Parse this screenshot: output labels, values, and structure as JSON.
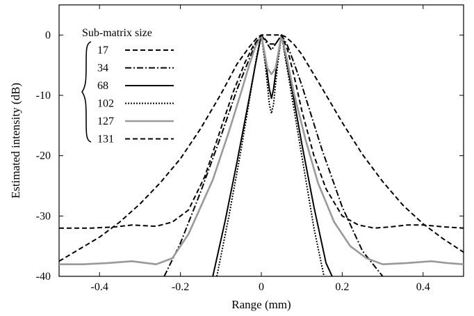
{
  "chart_data": {
    "type": "line",
    "title": "",
    "xlabel": "Range (mm)",
    "ylabel": "Estimated intensity  (dB)",
    "xlim": [
      -0.5,
      0.5
    ],
    "ylim": [
      -40,
      5
    ],
    "xticks": [
      -0.4,
      -0.2,
      0,
      0.2,
      0.4
    ],
    "xtick_labels": [
      "-0.4",
      "-0.2",
      "0",
      "0.2",
      "0.4"
    ],
    "yticks": [
      0,
      -10,
      -20,
      -30,
      -40
    ],
    "ytick_labels": [
      "0",
      "-10",
      "-20",
      "-30",
      "-40"
    ],
    "grid": false,
    "legend": {
      "title": "Sub-matrix size",
      "placement": "top-left"
    },
    "series": [
      {
        "name": "17",
        "color": "#000000",
        "dash": "dashed",
        "x": [
          -0.5,
          -0.45,
          -0.4,
          -0.35,
          -0.3,
          -0.25,
          -0.2,
          -0.15,
          -0.1,
          -0.06,
          -0.03,
          -0.01,
          0.0,
          0.025,
          0.05,
          0.06,
          0.08,
          0.1,
          0.15,
          0.2,
          0.25,
          0.3,
          0.35,
          0.4,
          0.45,
          0.5
        ],
        "y": [
          -37.5,
          -35.5,
          -33.5,
          -31.0,
          -28.0,
          -24.5,
          -20.5,
          -15.5,
          -9.8,
          -4.8,
          -2.0,
          -0.4,
          0.0,
          0.0,
          0.0,
          -0.3,
          -1.5,
          -3.2,
          -8.8,
          -14.5,
          -19.8,
          -24.3,
          -28.2,
          -31.3,
          -33.8,
          -36.0
        ]
      },
      {
        "name": "34",
        "color": "#000000",
        "dash": "dashdot",
        "x": [
          -0.24,
          -0.2,
          -0.15,
          -0.1,
          -0.06,
          -0.03,
          -0.015,
          0.0,
          0.01,
          0.025,
          0.04,
          0.05,
          0.065,
          0.08,
          0.1,
          0.15,
          0.2,
          0.25,
          0.3
        ],
        "y": [
          -40.0,
          -34.5,
          -26.0,
          -16.8,
          -9.0,
          -4.0,
          -1.5,
          0.0,
          -1.0,
          -2.5,
          -1.0,
          0.0,
          -1.8,
          -4.5,
          -8.3,
          -19.0,
          -28.5,
          -35.8,
          -40.0
        ]
      },
      {
        "name": "68",
        "color": "#000000",
        "dash": "solid",
        "x": [
          -0.12,
          -0.09,
          -0.06,
          -0.03,
          -0.015,
          0.0,
          0.01,
          0.02,
          0.025,
          0.03,
          0.04,
          0.05,
          0.06,
          0.08,
          0.1,
          0.13,
          0.16,
          0.175
        ],
        "y": [
          -40.0,
          -31.0,
          -21.0,
          -10.5,
          -5.0,
          0.0,
          -4.0,
          -9.0,
          -10.5,
          -9.0,
          -4.0,
          0.0,
          -3.5,
          -10.5,
          -18.0,
          -28.5,
          -37.8,
          -40.0
        ]
      },
      {
        "name": "102",
        "color": "#000000",
        "dash": "dotted",
        "x": [
          -0.11,
          -0.08,
          -0.05,
          -0.025,
          -0.01,
          0.0,
          0.01,
          0.02,
          0.025,
          0.03,
          0.04,
          0.05,
          0.06,
          0.08,
          0.1,
          0.13,
          0.155
        ],
        "y": [
          -40.0,
          -30.0,
          -19.0,
          -9.0,
          -3.0,
          0.0,
          -5.0,
          -11.5,
          -13.0,
          -11.5,
          -5.0,
          0.0,
          -4.0,
          -12.0,
          -20.0,
          -32.0,
          -40.0
        ]
      },
      {
        "name": "127",
        "color": "#999999",
        "dash": "solid",
        "x": [
          -0.5,
          -0.44,
          -0.38,
          -0.32,
          -0.26,
          -0.22,
          -0.18,
          -0.12,
          -0.08,
          -0.05,
          -0.03,
          -0.015,
          0.0,
          0.015,
          0.025,
          0.035,
          0.05,
          0.065,
          0.08,
          0.11,
          0.14,
          0.18,
          0.22,
          0.26,
          0.3,
          0.36,
          0.42,
          0.46,
          0.5
        ],
        "y": [
          -38.0,
          -38.0,
          -37.8,
          -37.5,
          -38.0,
          -37.0,
          -33.0,
          -24.0,
          -16.0,
          -9.5,
          -5.0,
          -2.0,
          0.0,
          -5.5,
          -6.5,
          -5.5,
          0.0,
          -4.5,
          -9.5,
          -17.5,
          -24.5,
          -31.0,
          -35.0,
          -37.0,
          -38.0,
          -37.8,
          -37.5,
          -37.8,
          -38.0
        ]
      },
      {
        "name": "131",
        "color": "#000000",
        "dash": "dashed",
        "x": [
          -0.5,
          -0.42,
          -0.36,
          -0.32,
          -0.26,
          -0.22,
          -0.18,
          -0.14,
          -0.1,
          -0.07,
          -0.04,
          -0.02,
          0.0,
          0.02,
          0.035,
          0.05,
          0.065,
          0.08,
          0.1,
          0.13,
          0.16,
          0.2,
          0.24,
          0.28,
          0.32,
          0.36,
          0.4,
          0.45,
          0.5
        ],
        "y": [
          -32.0,
          -32.0,
          -31.8,
          -31.5,
          -31.7,
          -31.0,
          -29.0,
          -23.5,
          -15.5,
          -9.5,
          -4.5,
          -1.8,
          0.0,
          -1.5,
          -1.5,
          0.0,
          -2.5,
          -6.5,
          -12.5,
          -20.0,
          -25.5,
          -30.0,
          -31.5,
          -32.0,
          -31.8,
          -31.5,
          -31.5,
          -31.8,
          -32.0
        ]
      }
    ]
  }
}
